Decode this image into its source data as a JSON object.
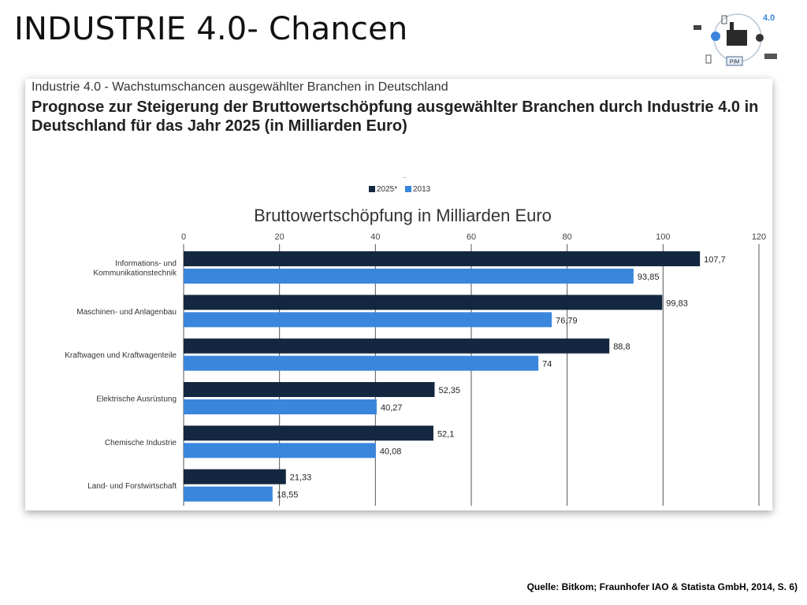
{
  "slide": {
    "title": "INDUSTRIE 4.0- Chancen",
    "logo_label": "PIM",
    "logo_badge": "4.0",
    "source": "Quelle: Bitkom; Fraunhofer IAO & Statista GmbH, 2014, S. 6)"
  },
  "caption": {
    "line1": "Industrie 4.0 - Wachstumschancen ausgewählter Branchen in Deutschland",
    "line2": "Prognose zur Steigerung der Bruttowertschöpfung ausgewählter Branchen durch Industrie 4.0 in Deutschland für das Jahr 2025 (in Milliarden Euro)"
  },
  "chart_data": {
    "type": "bar",
    "orientation": "horizontal",
    "title": "Bruttowertschöpfung in Milliarden Euro",
    "legend_marker": "··",
    "legend_position": "top",
    "categories": [
      [
        "Informations- und",
        "Kommunikationstechnik"
      ],
      [
        "Maschinen- und Anlagenbau"
      ],
      [
        "Kraftwagen und Kraftwagenteile"
      ],
      [
        "Elektrische Ausrüstung"
      ],
      [
        "Chemische Industrie"
      ],
      [
        "Land- und Forstwirtschaft"
      ]
    ],
    "series": [
      {
        "name": "2025*",
        "color": "#142740",
        "values": [
          107.7,
          99.83,
          88.8,
          52.35,
          52.1,
          21.33
        ],
        "labels": [
          "107,7",
          "99,83",
          "88,8",
          "52,35",
          "52,1",
          "21,33"
        ]
      },
      {
        "name": "2013",
        "color": "#3a86dd",
        "values": [
          93.85,
          76.79,
          74,
          40.27,
          40.08,
          18.55
        ],
        "labels": [
          "93,85",
          "76,79",
          "74",
          "40,27",
          "40,08",
          "18,55"
        ]
      }
    ],
    "xlim": [
      0,
      120
    ],
    "xticks": [
      0,
      20,
      40,
      60,
      80,
      100,
      120
    ],
    "grid": true
  }
}
